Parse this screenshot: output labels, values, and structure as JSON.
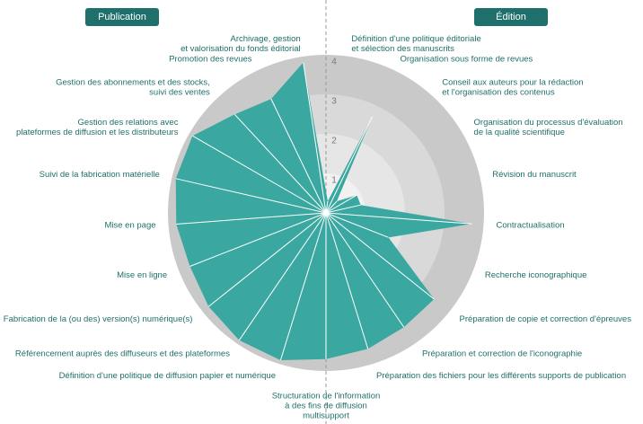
{
  "chart_data": {
    "type": "radar",
    "group_labels": [
      "Publication",
      "Édition"
    ],
    "group_color": "#1f6f6c",
    "color": "#3aa8a0",
    "ring_colors": [
      "#f1f1f1",
      "#e6e6e6",
      "#d9d9d9",
      "#c9c9c9"
    ],
    "ylim": [
      0,
      4
    ],
    "yticks": [
      1,
      2,
      3,
      4
    ],
    "categories": [
      [
        "Définition d'une politique éditoriale",
        "et sélection des manuscrits"
      ],
      [
        "Organisation sous forme de revues"
      ],
      [
        "Conseil aux auteurs pour la rédaction",
        "et l'organisation des contenus"
      ],
      [
        "Organisation du processus d'évaluation",
        "de la qualité scientifique"
      ],
      [
        "Révision du manuscrit"
      ],
      [
        "Contractualisation"
      ],
      [
        "Recherche iconographique"
      ],
      [
        "Préparation de copie et correction d'épreuves"
      ],
      [
        "Préparation et correction de l'iconographie"
      ],
      [
        "Préparation des fichiers pour les différents supports de publication"
      ],
      [
        "Structuration de l'information",
        "à des fins de diffusion",
        "multisupport"
      ],
      [
        "Définition d'une politique de diffusion papier et numérique"
      ],
      [
        "Référencement auprès des diffuseurs et des plateformes"
      ],
      [
        "Fabrication de la (ou des) version(s) numérique(s)"
      ],
      [
        "Mise en ligne"
      ],
      [
        "Mise en page"
      ],
      [
        "Suivi de la fabrication matérielle"
      ],
      [
        "Gestion des relations avec",
        "plateformes de diffusion et les distributeurs"
      ],
      [
        "Gestion des abonnements et des stocks,",
        "suivi des ventes"
      ],
      [
        "Promotion des revues"
      ],
      [
        "Archivage, gestion",
        "et valorisation du fonds éditorial"
      ]
    ],
    "values": [
      0.3,
      2.7,
      0.4,
      0.9,
      0.9,
      3.7,
      1.7,
      3.5,
      3.5,
      3.6,
      3.7,
      3.9,
      3.9,
      3.8,
      3.7,
      3.8,
      3.9,
      3.9,
      3.4,
      3.2,
      3.85
    ]
  }
}
